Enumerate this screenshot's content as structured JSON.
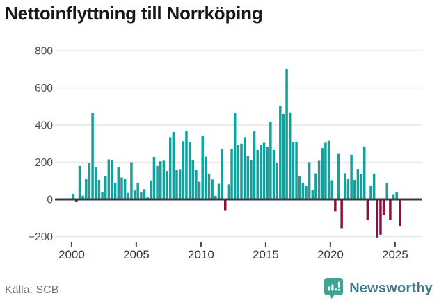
{
  "header": {
    "title": "Nettoinflyttning till Norrköping"
  },
  "footer": {
    "source": "Källa: SCB",
    "brand": "Newsworthy",
    "brand_icon": "newsworthy-chart-bubble-icon"
  },
  "chart_data": {
    "type": "bar",
    "title": "Nettoinflyttning till Norrköping",
    "source": "Källa: SCB",
    "frequency": "quarterly",
    "start_period": "2000-Q1",
    "end_period": "2025-Q2",
    "values": [
      30,
      -15,
      180,
      20,
      110,
      195,
      465,
      175,
      105,
      40,
      125,
      215,
      210,
      90,
      175,
      118,
      110,
      35,
      200,
      48,
      90,
      40,
      55,
      15,
      102,
      228,
      180,
      205,
      208,
      153,
      335,
      363,
      158,
      163,
      313,
      368,
      310,
      210,
      160,
      95,
      340,
      230,
      139,
      107,
      19,
      84,
      270,
      -58,
      81,
      270,
      465,
      295,
      300,
      335,
      233,
      210,
      366,
      266,
      295,
      305,
      283,
      418,
      266,
      195,
      505,
      460,
      700,
      468,
      310,
      310,
      125,
      90,
      75,
      200,
      50,
      140,
      208,
      276,
      305,
      315,
      103,
      -65,
      248,
      -155,
      140,
      108,
      240,
      105,
      164,
      138,
      285,
      -110,
      75,
      139,
      -205,
      -190,
      -85,
      87,
      -110,
      28,
      40,
      -145
    ],
    "x_tick_labels": [
      "2000",
      "2005",
      "2010",
      "2015",
      "2020",
      "2025"
    ],
    "y_tick_labels": [
      "800",
      "600",
      "400",
      "200",
      "0",
      "−200"
    ],
    "y_ticks": [
      800,
      600,
      400,
      200,
      0,
      -200
    ],
    "ylim": [
      -260,
      840
    ],
    "grid": true,
    "legend": "none",
    "colors": {
      "positive_bar": "#12a19c",
      "negative_bar": "#8e1041",
      "zero_axis": "#3a3a3a",
      "gridline": "#e7e7e7",
      "axis_text": "#4d4d4d",
      "brand_teal": "#3fa392"
    }
  }
}
